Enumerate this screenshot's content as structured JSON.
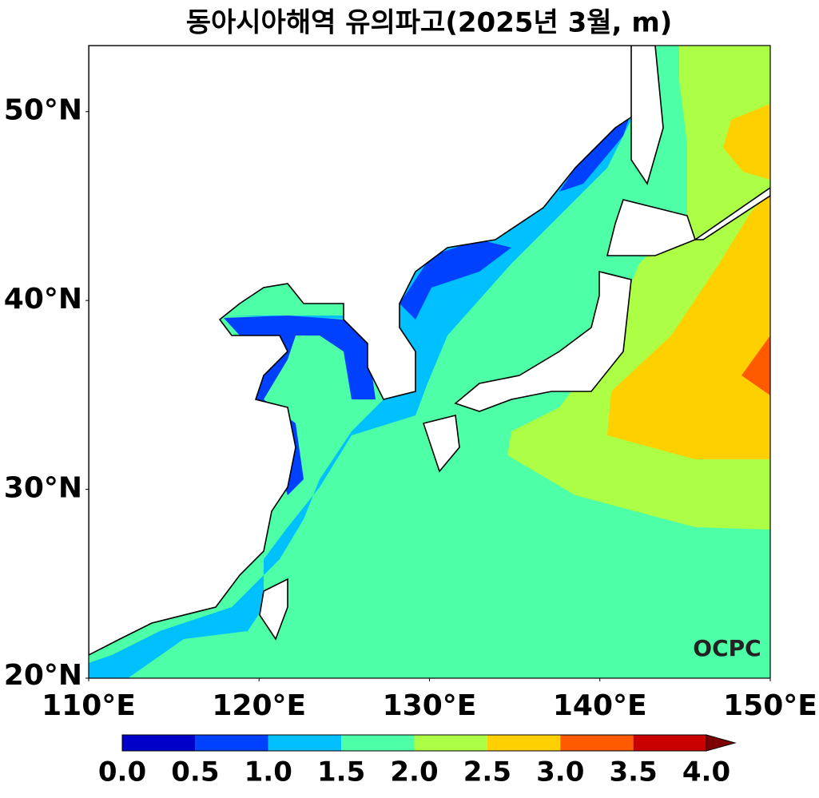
{
  "chart_data": {
    "type": "map",
    "title": "동아시아해역 유의파고(2025년 3월, m)",
    "xlim": [
      110,
      150
    ],
    "ylim": [
      20,
      53.5
    ],
    "xticks": [
      {
        "value": 110,
        "label": "110°E"
      },
      {
        "value": 120,
        "label": "120°E"
      },
      {
        "value": 130,
        "label": "130°E"
      },
      {
        "value": 140,
        "label": "140°E"
      },
      {
        "value": 150,
        "label": "150°E"
      }
    ],
    "yticks": [
      {
        "value": 20,
        "label": "20°N"
      },
      {
        "value": 30,
        "label": "30°N"
      },
      {
        "value": 40,
        "label": "40°N"
      },
      {
        "value": 50,
        "label": "50°N"
      }
    ],
    "colorbar": {
      "levels": [
        {
          "value": 0,
          "label": "0.0"
        },
        {
          "value": 0.5,
          "label": "0.5"
        },
        {
          "value": 1,
          "label": "1.0"
        },
        {
          "value": 1.5,
          "label": "1.5"
        },
        {
          "value": 2,
          "label": "2.0"
        },
        {
          "value": 2.5,
          "label": "2.5"
        },
        {
          "value": 3,
          "label": "3.0"
        },
        {
          "value": 3.5,
          "label": "3.5"
        },
        {
          "value": 4,
          "label": "4.0"
        }
      ],
      "colors": [
        "#0000c8",
        "#0040ff",
        "#00c0ff",
        "#4dffa6",
        "#adff45",
        "#ffd000",
        "#ff5a00",
        "#c80000"
      ],
      "extend_color": "#7f0000"
    },
    "logo": "OCPC"
  }
}
